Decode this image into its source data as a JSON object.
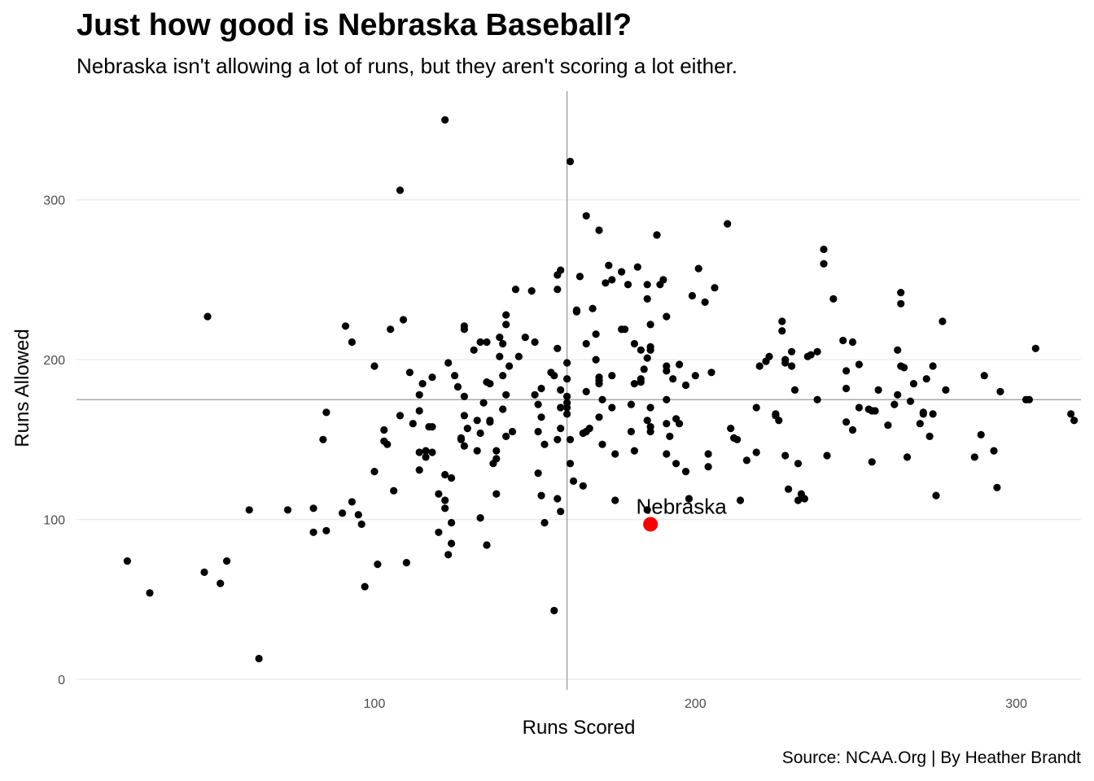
{
  "chart_data": {
    "type": "scatter",
    "title": "Just how good is Nebraska Baseball?",
    "subtitle": "Nebraska isn't allowing a lot of runs, but they aren't scoring a lot either.",
    "caption": "Source: NCAA.Org | By Heather Brandt",
    "xlabel": "Runs Scored",
    "ylabel": "Runs Allowed",
    "xlim": [
      7,
      320
    ],
    "ylim": [
      0,
      366
    ],
    "x_ticks": [
      100,
      200,
      300
    ],
    "y_ticks": [
      0,
      100,
      200,
      300
    ],
    "grid": "horizontal major only",
    "reference_lines": {
      "x": 160,
      "y": 175
    },
    "colors": {
      "points": "#000000",
      "highlight": "#ff0000",
      "reference": "#999999",
      "grid": "#ebebeb"
    },
    "highlight": {
      "label": "Nebraska",
      "x": 186,
      "y": 97
    },
    "points": [
      [
        122,
        350
      ],
      [
        161,
        324
      ],
      [
        108,
        306
      ],
      [
        166,
        290
      ],
      [
        170,
        281
      ],
      [
        210,
        285
      ],
      [
        188,
        278
      ],
      [
        240,
        269
      ],
      [
        240,
        260
      ],
      [
        48,
        227
      ],
      [
        91,
        221
      ],
      [
        93,
        211
      ],
      [
        109,
        225
      ],
      [
        105,
        219
      ],
      [
        125,
        190
      ],
      [
        123,
        198
      ],
      [
        118,
        189
      ],
      [
        126,
        183
      ],
      [
        100,
        196
      ],
      [
        103,
        156
      ],
      [
        103,
        149
      ],
      [
        104,
        147
      ],
      [
        111,
        192
      ],
      [
        114,
        178
      ],
      [
        115,
        185
      ],
      [
        118,
        158
      ],
      [
        117,
        158
      ],
      [
        112,
        160
      ],
      [
        114,
        168
      ],
      [
        108,
        165
      ],
      [
        116,
        143
      ],
      [
        114,
        142
      ],
      [
        116,
        139
      ],
      [
        118,
        142
      ],
      [
        114,
        131
      ],
      [
        122,
        128
      ],
      [
        124,
        126
      ],
      [
        100,
        130
      ],
      [
        106,
        118
      ],
      [
        120,
        116
      ],
      [
        122,
        107
      ],
      [
        122,
        112
      ],
      [
        124,
        98
      ],
      [
        120,
        92
      ],
      [
        123,
        78
      ],
      [
        124,
        85
      ],
      [
        110,
        73
      ],
      [
        101,
        72
      ],
      [
        97,
        58
      ],
      [
        85,
        167
      ],
      [
        84,
        150
      ],
      [
        85,
        93
      ],
      [
        81,
        107
      ],
      [
        81,
        92
      ],
      [
        73,
        106
      ],
      [
        90,
        104
      ],
      [
        93,
        111
      ],
      [
        95,
        103
      ],
      [
        96,
        97
      ],
      [
        61,
        106
      ],
      [
        64,
        13
      ],
      [
        54,
        74
      ],
      [
        52,
        60
      ],
      [
        47,
        67
      ],
      [
        30,
        54
      ],
      [
        23,
        74
      ],
      [
        128,
        221
      ],
      [
        128,
        219
      ],
      [
        131,
        206
      ],
      [
        133,
        211
      ],
      [
        135,
        211
      ],
      [
        136,
        185
      ],
      [
        134,
        173
      ],
      [
        135,
        186
      ],
      [
        128,
        165
      ],
      [
        128,
        177
      ],
      [
        132,
        162
      ],
      [
        133,
        154
      ],
      [
        136,
        162
      ],
      [
        132,
        143
      ],
      [
        138,
        143
      ],
      [
        138,
        138
      ],
      [
        137,
        135
      ],
      [
        138,
        116
      ],
      [
        135,
        84
      ],
      [
        133,
        101
      ],
      [
        127,
        150
      ],
      [
        127,
        151
      ],
      [
        128,
        146
      ],
      [
        129,
        157
      ],
      [
        136,
        161
      ],
      [
        139,
        202
      ],
      [
        140,
        190
      ],
      [
        139,
        214
      ],
      [
        140,
        210
      ],
      [
        141,
        228
      ],
      [
        141,
        222
      ],
      [
        142,
        196
      ],
      [
        141,
        178
      ],
      [
        140,
        169
      ],
      [
        141,
        152
      ],
      [
        143,
        155
      ],
      [
        144,
        244
      ],
      [
        145,
        202
      ],
      [
        147,
        214
      ],
      [
        149,
        243
      ],
      [
        150,
        211
      ],
      [
        150,
        178
      ],
      [
        151,
        172
      ],
      [
        151,
        155
      ],
      [
        151,
        129
      ],
      [
        152,
        182
      ],
      [
        152,
        164
      ],
      [
        152,
        115
      ],
      [
        153,
        147
      ],
      [
        153,
        98
      ],
      [
        155,
        192
      ],
      [
        156,
        190
      ],
      [
        157,
        244
      ],
      [
        157,
        253
      ],
      [
        158,
        256
      ],
      [
        157,
        207
      ],
      [
        158,
        181
      ],
      [
        158,
        170
      ],
      [
        158,
        157
      ],
      [
        157,
        150
      ],
      [
        157,
        113
      ],
      [
        158,
        105
      ],
      [
        156,
        43
      ],
      [
        160,
        198
      ],
      [
        160,
        188
      ],
      [
        160,
        177
      ],
      [
        160,
        173
      ],
      [
        160,
        170
      ],
      [
        160,
        166
      ],
      [
        161,
        150
      ],
      [
        161,
        135
      ],
      [
        162,
        124
      ],
      [
        163,
        230
      ],
      [
        163,
        231
      ],
      [
        164,
        252
      ],
      [
        165,
        154
      ],
      [
        165,
        121
      ],
      [
        166,
        210
      ],
      [
        166,
        180
      ],
      [
        166,
        155
      ],
      [
        167,
        157
      ],
      [
        168,
        232
      ],
      [
        169,
        216
      ],
      [
        169,
        200
      ],
      [
        170,
        189
      ],
      [
        170,
        187
      ],
      [
        170,
        185
      ],
      [
        170,
        164
      ],
      [
        171,
        147
      ],
      [
        171,
        175
      ],
      [
        172,
        248
      ],
      [
        173,
        259
      ],
      [
        174,
        250
      ],
      [
        174,
        190
      ],
      [
        174,
        170
      ],
      [
        175,
        141
      ],
      [
        175,
        112
      ],
      [
        177,
        255
      ],
      [
        177,
        219
      ],
      [
        178,
        219
      ],
      [
        179,
        247
      ],
      [
        180,
        172
      ],
      [
        180,
        155
      ],
      [
        181,
        210
      ],
      [
        181,
        185
      ],
      [
        181,
        143
      ],
      [
        182,
        258
      ],
      [
        183,
        206
      ],
      [
        183,
        186
      ],
      [
        183,
        188
      ],
      [
        184,
        194
      ],
      [
        185,
        247
      ],
      [
        185,
        238
      ],
      [
        185,
        201
      ],
      [
        185,
        162
      ],
      [
        186,
        222
      ],
      [
        186,
        208
      ],
      [
        186,
        206
      ],
      [
        186,
        170
      ],
      [
        186,
        158
      ],
      [
        186,
        155
      ],
      [
        185,
        106
      ],
      [
        188,
        278
      ],
      [
        189,
        247
      ],
      [
        190,
        250
      ],
      [
        191,
        227
      ],
      [
        191,
        196
      ],
      [
        191,
        193
      ],
      [
        191,
        175
      ],
      [
        191,
        160
      ],
      [
        191,
        141
      ],
      [
        192,
        152
      ],
      [
        193,
        188
      ],
      [
        194,
        163
      ],
      [
        194,
        135
      ],
      [
        195,
        160
      ],
      [
        195,
        197
      ],
      [
        197,
        184
      ],
      [
        197,
        130
      ],
      [
        198,
        113
      ],
      [
        199,
        240
      ],
      [
        200,
        190
      ],
      [
        201,
        257
      ],
      [
        203,
        236
      ],
      [
        205,
        192
      ],
      [
        204,
        141
      ],
      [
        204,
        133
      ],
      [
        206,
        245
      ],
      [
        211,
        157
      ],
      [
        212,
        151
      ],
      [
        213,
        150
      ],
      [
        214,
        112
      ],
      [
        216,
        137
      ],
      [
        219,
        142
      ],
      [
        219,
        170
      ],
      [
        220,
        196
      ],
      [
        222,
        199
      ],
      [
        223,
        202
      ],
      [
        225,
        166
      ],
      [
        225,
        165
      ],
      [
        226,
        162
      ],
      [
        227,
        224
      ],
      [
        227,
        218
      ],
      [
        228,
        198
      ],
      [
        228,
        200
      ],
      [
        228,
        140
      ],
      [
        229,
        119
      ],
      [
        230,
        205
      ],
      [
        230,
        196
      ],
      [
        231,
        181
      ],
      [
        232,
        135
      ],
      [
        233,
        116
      ],
      [
        234,
        113
      ],
      [
        232,
        112
      ],
      [
        235,
        202
      ],
      [
        236,
        203
      ],
      [
        238,
        205
      ],
      [
        238,
        175
      ],
      [
        241,
        140
      ],
      [
        243,
        238
      ],
      [
        246,
        212
      ],
      [
        247,
        182
      ],
      [
        247,
        193
      ],
      [
        247,
        161
      ],
      [
        249,
        211
      ],
      [
        249,
        156
      ],
      [
        251,
        197
      ],
      [
        251,
        170
      ],
      [
        254,
        169
      ],
      [
        255,
        136
      ],
      [
        255,
        168
      ],
      [
        256,
        168
      ],
      [
        257,
        181
      ],
      [
        260,
        159
      ],
      [
        262,
        172
      ],
      [
        263,
        206
      ],
      [
        263,
        178
      ],
      [
        264,
        196
      ],
      [
        264,
        242
      ],
      [
        264,
        235
      ],
      [
        265,
        195
      ],
      [
        266,
        139
      ],
      [
        267,
        174
      ],
      [
        268,
        185
      ],
      [
        270,
        160
      ],
      [
        271,
        167
      ],
      [
        271,
        166
      ],
      [
        272,
        188
      ],
      [
        273,
        152
      ],
      [
        274,
        166
      ],
      [
        274,
        196
      ],
      [
        275,
        115
      ],
      [
        277,
        224
      ],
      [
        278,
        181
      ],
      [
        287,
        139
      ],
      [
        289,
        153
      ],
      [
        290,
        190
      ],
      [
        293,
        143
      ],
      [
        294,
        120
      ],
      [
        295,
        180
      ],
      [
        303,
        175
      ],
      [
        304,
        175
      ],
      [
        306,
        207
      ],
      [
        317,
        166
      ],
      [
        318,
        162
      ]
    ]
  }
}
